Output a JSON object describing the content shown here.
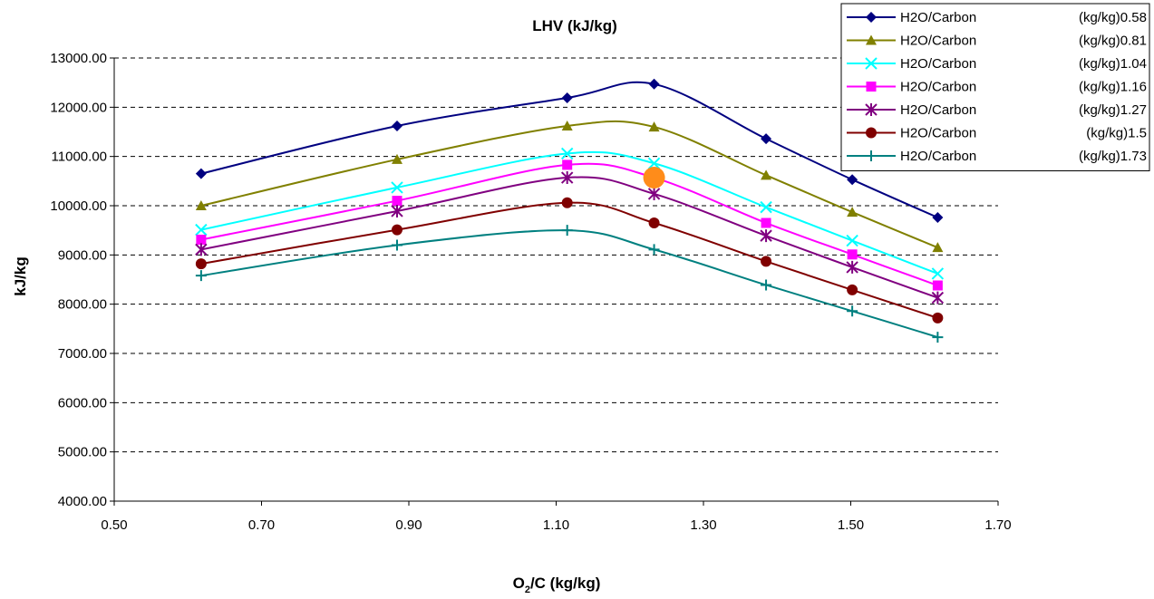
{
  "chart_data": {
    "type": "line",
    "title": "LHV (kJ/kg)",
    "xlabel": {
      "main": "O",
      "sub": "2",
      "rest": "/C (kg/kg)"
    },
    "ylabel": "kJ/kg",
    "xlim": [
      0.5,
      1.7
    ],
    "ylim": [
      4000,
      13000
    ],
    "x_ticks": [
      "0.50",
      "0.70",
      "0.90",
      "1.10",
      "1.30",
      "1.50",
      "1.70"
    ],
    "y_ticks": [
      "4000.00",
      "5000.00",
      "6000.00",
      "7000.00",
      "8000.00",
      "9000.00",
      "10000.00",
      "11000.00",
      "12000.00",
      "13000.00"
    ],
    "grid": "horizontal dashed",
    "legend_position": "top-right",
    "x": [
      0.618,
      0.884,
      1.115,
      1.233,
      1.385,
      1.502,
      1.618
    ],
    "series": [
      {
        "name": "H2O/Carbon",
        "unit_label": "(kg/kg)0.58",
        "color": "#000080",
        "marker": "diamond",
        "values": [
          10650,
          11620,
          12190,
          12470,
          11360,
          10530,
          9760
        ]
      },
      {
        "name": "H2O/Carbon",
        "unit_label": "(kg/kg)0.81",
        "color": "#808000",
        "marker": "triangle",
        "values": [
          10000,
          10940,
          11620,
          11600,
          10620,
          9870,
          9150
        ]
      },
      {
        "name": "H2O/Carbon",
        "unit_label": "(kg/kg)1.04",
        "color": "#00FFFF",
        "marker": "x",
        "values": [
          9510,
          10370,
          11060,
          10860,
          9970,
          9290,
          8620
        ]
      },
      {
        "name": "H2O/Carbon",
        "unit_label": "(kg/kg)1.16",
        "color": "#FF00FF",
        "marker": "square",
        "values": [
          9310,
          10100,
          10830,
          10570,
          9650,
          9010,
          8380
        ]
      },
      {
        "name": "H2O/Carbon",
        "unit_label": "(kg/kg)1.27",
        "color": "#800080",
        "marker": "star",
        "values": [
          9110,
          9890,
          10570,
          10240,
          9390,
          8750,
          8130
        ]
      },
      {
        "name": "H2O/Carbon",
        "unit_label": "(kg/kg)1.5",
        "color": "#800000",
        "marker": "circle",
        "values": [
          8820,
          9510,
          10060,
          9650,
          8870,
          8290,
          7720
        ]
      },
      {
        "name": "H2O/Carbon",
        "unit_label": "(kg/kg)1.73",
        "color": "#008080",
        "marker": "plus",
        "values": [
          8580,
          9200,
          9500,
          9110,
          8390,
          7860,
          7330
        ]
      }
    ],
    "highlight_point": {
      "x": 1.233,
      "y": 10570,
      "color": "#FF8C1A"
    }
  }
}
